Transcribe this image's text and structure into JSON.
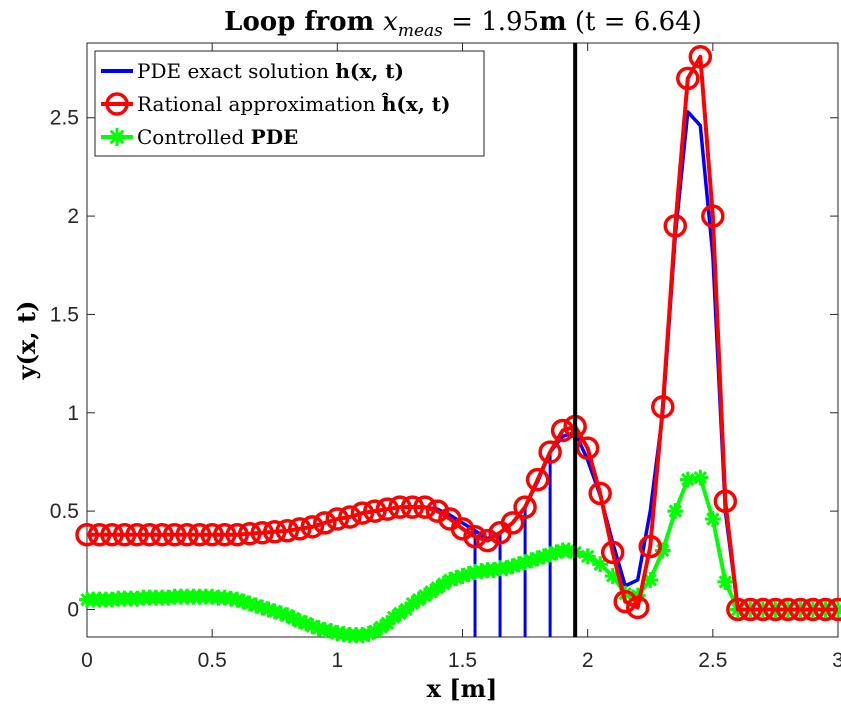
{
  "chart_data": {
    "type": "line",
    "title": "Loop from x_meas = 1.95m (t = 6.64)",
    "xlabel": "x [m]",
    "ylabel": "y(x,t)",
    "xlim": [
      0,
      3
    ],
    "ylim": [
      -0.14,
      2.88
    ],
    "xticks": [
      "0",
      "0.5",
      "1",
      "1.5",
      "2",
      "2.5",
      "3"
    ],
    "yticks": [
      "0",
      "0.5",
      "1",
      "1.5",
      "2",
      "2.5"
    ],
    "grid": false,
    "legend_position": "top-left",
    "vline_x": 1.95,
    "x": [
      0,
      0.05,
      0.1,
      0.15,
      0.2,
      0.25,
      0.3,
      0.35,
      0.4,
      0.45,
      0.5,
      0.55,
      0.6,
      0.65,
      0.7,
      0.75,
      0.8,
      0.85,
      0.9,
      0.95,
      1.0,
      1.05,
      1.1,
      1.15,
      1.2,
      1.25,
      1.3,
      1.35,
      1.4,
      1.45,
      1.5,
      1.55,
      1.6,
      1.65,
      1.7,
      1.75,
      1.8,
      1.85,
      1.9,
      1.95,
      2.0,
      2.05,
      2.1,
      2.15,
      2.2,
      2.25,
      2.3,
      2.35,
      2.4,
      2.45,
      2.5,
      2.55,
      2.6,
      2.65,
      2.7,
      2.75,
      2.8,
      2.85,
      2.9,
      2.95,
      3.0
    ],
    "series": [
      {
        "name": "PDE exact solution h(x,t)",
        "color": "#0000ff",
        "marker": "none",
        "values": [
          0.38,
          0.38,
          0.38,
          0.38,
          0.38,
          0.38,
          0.38,
          0.38,
          0.38,
          0.38,
          0.38,
          0.38,
          0.38,
          0.385,
          0.39,
          0.395,
          0.4,
          0.41,
          0.42,
          0.44,
          0.46,
          0.47,
          0.49,
          0.5,
          0.51,
          0.52,
          0.52,
          0.52,
          0.51,
          0.48,
          0.44,
          0.4,
          0.36,
          0.39,
          0.44,
          0.52,
          0.65,
          0.8,
          0.88,
          0.9,
          0.76,
          0.58,
          0.34,
          0.12,
          0.15,
          0.5,
          1.0,
          1.9,
          2.53,
          2.46,
          1.8,
          0.5,
          0.0,
          0.0,
          0.0,
          0.0,
          0.0,
          0.0,
          0.0,
          0.0,
          0.0
        ]
      },
      {
        "name": "Rational approximation ĥ(x,t)",
        "color": "#ff0000",
        "marker": "circle",
        "values": [
          0.38,
          0.38,
          0.38,
          0.38,
          0.38,
          0.38,
          0.38,
          0.38,
          0.38,
          0.38,
          0.38,
          0.38,
          0.38,
          0.385,
          0.39,
          0.395,
          0.4,
          0.41,
          0.42,
          0.44,
          0.46,
          0.47,
          0.49,
          0.5,
          0.51,
          0.52,
          0.52,
          0.52,
          0.5,
          0.46,
          0.41,
          0.37,
          0.35,
          0.39,
          0.44,
          0.52,
          0.66,
          0.8,
          0.91,
          0.93,
          0.82,
          0.59,
          0.29,
          0.04,
          0.01,
          0.32,
          1.03,
          1.95,
          2.7,
          2.81,
          2.0,
          0.55,
          0.0,
          0.0,
          0.0,
          0.0,
          0.0,
          0.0,
          0.0,
          0.0,
          0.0
        ]
      },
      {
        "name": "Controlled PDE",
        "color": "#00ff00",
        "marker": "asterisk",
        "x": [
          0,
          0.025,
          0.05,
          0.075,
          0.1,
          0.125,
          0.15,
          0.175,
          0.2,
          0.225,
          0.25,
          0.275,
          0.3,
          0.325,
          0.35,
          0.375,
          0.4,
          0.425,
          0.45,
          0.475,
          0.5,
          0.525,
          0.55,
          0.575,
          0.6,
          0.625,
          0.65,
          0.675,
          0.7,
          0.725,
          0.75,
          0.775,
          0.8,
          0.825,
          0.85,
          0.875,
          0.9,
          0.925,
          0.95,
          0.975,
          1.0,
          1.025,
          1.05,
          1.075,
          1.1,
          1.125,
          1.15,
          1.175,
          1.2,
          1.225,
          1.25,
          1.275,
          1.3,
          1.325,
          1.35,
          1.375,
          1.4,
          1.425,
          1.45,
          1.475,
          1.5,
          1.525,
          1.55,
          1.575,
          1.6,
          1.625,
          1.65,
          1.675,
          1.7,
          1.725,
          1.75,
          1.775,
          1.8,
          1.825,
          1.85,
          1.875,
          1.9,
          1.925,
          1.95,
          2.0,
          2.05,
          2.1,
          2.15,
          2.2,
          2.25,
          2.3,
          2.35,
          2.4,
          2.45,
          2.5,
          2.55,
          2.6,
          2.65,
          2.7,
          2.75,
          2.8,
          2.85,
          2.9,
          2.95,
          3.0
        ],
        "values": [
          0.05,
          0.05,
          0.05,
          0.05,
          0.05,
          0.055,
          0.055,
          0.055,
          0.055,
          0.06,
          0.06,
          0.06,
          0.06,
          0.06,
          0.065,
          0.065,
          0.065,
          0.065,
          0.065,
          0.065,
          0.065,
          0.06,
          0.06,
          0.055,
          0.05,
          0.04,
          0.03,
          0.02,
          0.01,
          0.0,
          -0.01,
          -0.02,
          -0.03,
          -0.045,
          -0.06,
          -0.07,
          -0.085,
          -0.095,
          -0.105,
          -0.11,
          -0.12,
          -0.125,
          -0.13,
          -0.13,
          -0.13,
          -0.125,
          -0.11,
          -0.09,
          -0.07,
          -0.04,
          -0.02,
          0.0,
          0.03,
          0.05,
          0.07,
          0.09,
          0.11,
          0.13,
          0.15,
          0.16,
          0.17,
          0.18,
          0.19,
          0.195,
          0.2,
          0.2,
          0.21,
          0.21,
          0.22,
          0.23,
          0.24,
          0.25,
          0.26,
          0.27,
          0.28,
          0.29,
          0.3,
          0.3,
          0.29,
          0.27,
          0.23,
          0.17,
          0.08,
          0.07,
          0.15,
          0.3,
          0.5,
          0.66,
          0.67,
          0.46,
          0.14,
          0.0,
          0.0,
          0.0,
          0.0,
          0.0,
          0.0,
          0.0,
          0.0,
          0.0
        ]
      }
    ],
    "stems": {
      "color": "#0000ff",
      "x": [
        1.55,
        1.65,
        1.75,
        1.85
      ]
    }
  },
  "legend": {
    "entries": [
      "PDE exact solution ",
      "Rational approximation ",
      "Controlled "
    ],
    "math": [
      "h(x, t)",
      "ĥ(x, t)",
      "PDE"
    ]
  },
  "text": {
    "title_prefix": "Loop from ",
    "title_var": "x",
    "title_sub": "meas",
    "title_eq": " = 1.95",
    "title_unit": "m",
    "title_paren": " (t = 6.64)",
    "xlabel": "x [m]",
    "ylabel": "y(x, t)"
  }
}
